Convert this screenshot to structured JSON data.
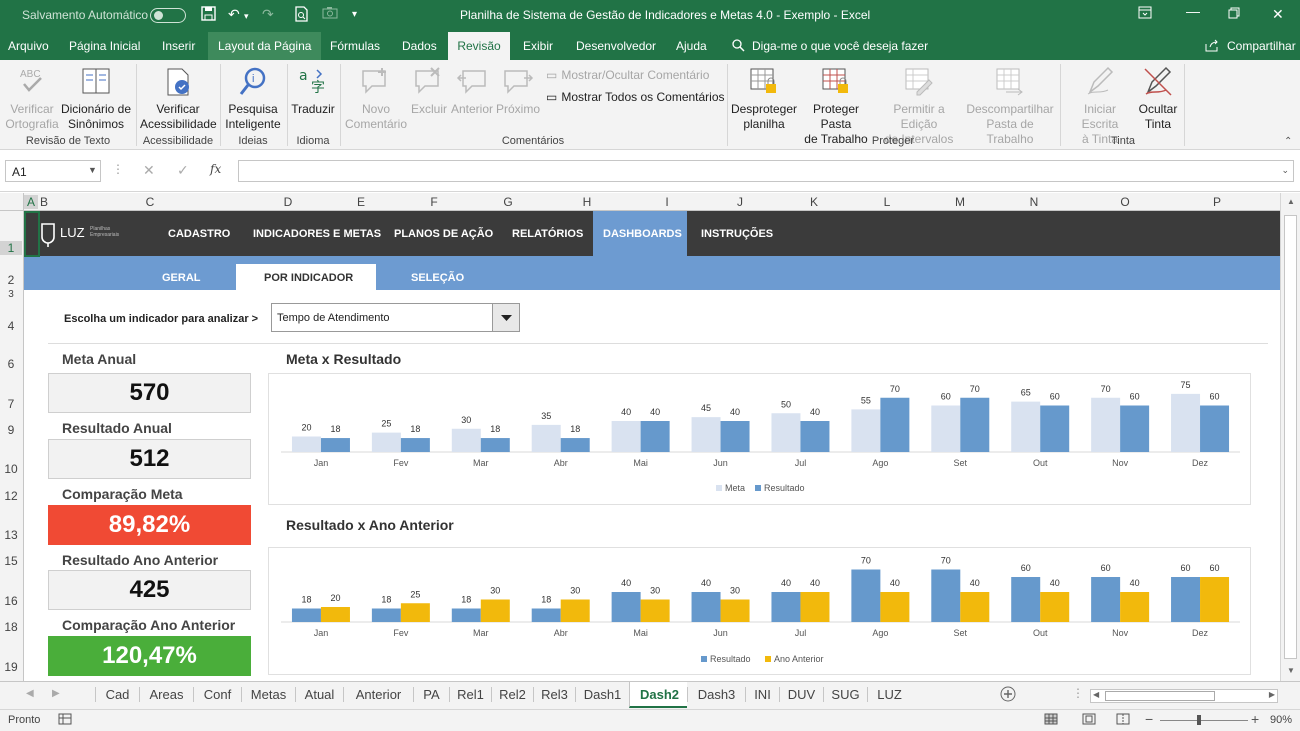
{
  "titlebar": {
    "autosave": "Salvamento Automático",
    "title": "Planilha de Sistema de Gestão de Indicadores e Metas 4.0 - Exemplo  -  Excel"
  },
  "menu": {
    "items": [
      "Arquivo",
      "Página Inicial",
      "Inserir",
      "Layout da Página",
      "Fórmulas",
      "Dados",
      "Revisão",
      "Exibir",
      "Desenvolvedor",
      "Ajuda"
    ],
    "tellme": "Diga-me o que você deseja fazer",
    "share": "Compartilhar"
  },
  "ribbon": {
    "check_spelling": [
      "Verificar",
      "Ortografia"
    ],
    "thesaurus": [
      "Dicionário de",
      "Sinônimos"
    ],
    "group_proofing": "Revisão de Texto",
    "check_access": [
      "Verificar",
      "Acessibilidade"
    ],
    "group_access": "Acessibilidade",
    "smart_lookup": [
      "Pesquisa",
      "Inteligente"
    ],
    "group_insights": "Ideias",
    "translate": "Traduzir",
    "group_language": "Idioma",
    "new_comment": [
      "Novo",
      "Comentário"
    ],
    "delete": "Excluir",
    "previous": "Anterior",
    "next": "Próximo",
    "show_hide_comment": "Mostrar/Ocultar Comentário",
    "show_all_comments": "Mostrar Todos os Comentários",
    "group_comments": "Comentários",
    "unprotect_sheet": [
      "Desproteger",
      "planilha"
    ],
    "protect_workbook": [
      "Proteger Pasta",
      "de Trabalho"
    ],
    "allow_edit": [
      "Permitir a Edição",
      "de Intervalos"
    ],
    "unshare": [
      "Descompartilhar",
      "Pasta de Trabalho"
    ],
    "group_protect": "Proteger",
    "start_ink": [
      "Iniciar Escrita",
      "à Tinta"
    ],
    "hide_ink": [
      "Ocultar",
      "Tinta"
    ],
    "group_ink": "Tinta"
  },
  "formula_bar": {
    "name_box": "A1",
    "fx": "fx",
    "value": ""
  },
  "columns": [
    "A",
    "B",
    "C",
    "D",
    "E",
    "F",
    "G",
    "H",
    "I",
    "J",
    "K",
    "L",
    "M",
    "N",
    "O",
    "P"
  ],
  "rows": [
    "1",
    "2",
    "3",
    "4",
    "6",
    "7",
    "9",
    "10",
    "12",
    "13",
    "15",
    "16",
    "18",
    "19"
  ],
  "dashboard": {
    "logo": "LUZ",
    "logo_sub": [
      "Planilhas",
      "Empresariais"
    ],
    "nav": [
      "CADASTRO",
      "INDICADORES E METAS",
      "PLANOS DE AÇÃO",
      "RELATÓRIOS",
      "DASHBOARDS",
      "INSTRUÇÕES"
    ],
    "subnav": [
      "GERAL",
      "POR INDICADOR",
      "SELEÇÃO"
    ],
    "choose_label": "Escolha um indicador para analizar >",
    "indicator_value": "Tempo de Atendimento",
    "kpis": [
      {
        "label": "Meta Anual",
        "value": "570"
      },
      {
        "label": "Resultado Anual",
        "value": "512"
      },
      {
        "label": "Comparação Meta",
        "value": "89,82%"
      },
      {
        "label": "Resultado Ano Anterior",
        "value": "425"
      },
      {
        "label": "Comparação Ano Anterior",
        "value": "120,47%"
      }
    ],
    "colors": {
      "meta": "#d9e2f0",
      "resultado": "#6699cc",
      "ano_anterior": "#f2b90c",
      "red": "#f04a34",
      "green": "#4aae3a"
    }
  },
  "chart_data": [
    {
      "type": "bar",
      "title": "Meta x Resultado",
      "categories": [
        "Jan",
        "Fev",
        "Mar",
        "Abr",
        "Mai",
        "Jun",
        "Jul",
        "Ago",
        "Set",
        "Out",
        "Nov",
        "Dez"
      ],
      "series": [
        {
          "name": "Meta",
          "values": [
            20,
            25,
            30,
            35,
            40,
            45,
            50,
            55,
            60,
            65,
            70,
            75
          ]
        },
        {
          "name": "Resultado",
          "values": [
            18,
            18,
            18,
            18,
            40,
            40,
            40,
            70,
            70,
            60,
            60,
            60
          ]
        }
      ],
      "ylim": [
        0,
        80
      ],
      "legend": "bottom"
    },
    {
      "type": "bar",
      "title": "Resultado x Ano Anterior",
      "categories": [
        "Jan",
        "Fev",
        "Mar",
        "Abr",
        "Mai",
        "Jun",
        "Jul",
        "Ago",
        "Set",
        "Out",
        "Nov",
        "Dez"
      ],
      "series": [
        {
          "name": "Resultado",
          "values": [
            18,
            18,
            18,
            18,
            40,
            40,
            40,
            70,
            70,
            60,
            60,
            60
          ]
        },
        {
          "name": "Ano Anterior",
          "values": [
            20,
            25,
            30,
            30,
            30,
            30,
            40,
            40,
            40,
            40,
            40,
            60
          ]
        }
      ],
      "ylim": [
        0,
        80
      ],
      "legend": "bottom"
    }
  ],
  "sheet_tabs": [
    "Cad",
    "Areas",
    "Conf",
    "Metas",
    "Atual",
    "Anterior",
    "PA",
    "Rel1",
    "Rel2",
    "Rel3",
    "Dash1",
    "Dash2",
    "Dash3",
    "INI",
    "DUV",
    "SUG",
    "LUZ"
  ],
  "active_tab": "Dash2",
  "status": {
    "mode": "Pronto",
    "zoom": "90%"
  }
}
